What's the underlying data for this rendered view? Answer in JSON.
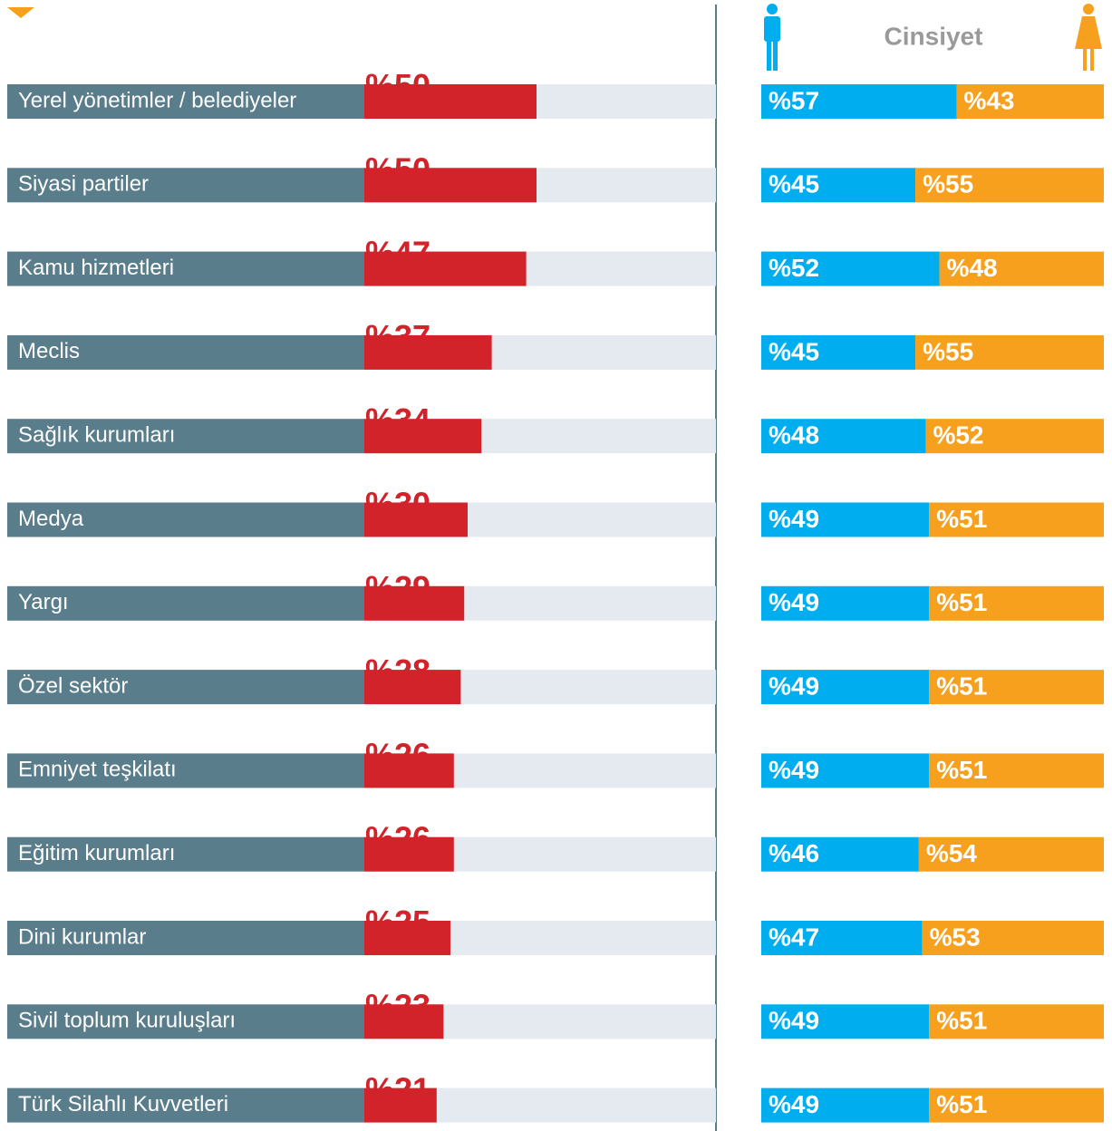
{
  "chart_data": {
    "type": "bar",
    "orientation": "horizontal",
    "categories": [
      "Yerel yönetimler / belediyeler",
      "Siyasi partiler",
      "Kamu hizmetleri",
      "Meclis",
      "Sağlık kurumları",
      "Medya",
      "Yargı",
      "Özel sektör",
      "Emniyet teşkilatı",
      "Eğitim kurumları",
      "Dini kurumlar",
      "Sivil toplum kuruluşları",
      "Türk Silahlı Kuvvetleri"
    ],
    "values": [
      50,
      50,
      47,
      37,
      34,
      30,
      29,
      28,
      26,
      26,
      25,
      23,
      21
    ],
    "value_labels": [
      "%50",
      "%50",
      "%47",
      "%37",
      "%34",
      "%30",
      "%29",
      "%28",
      "%26",
      "%26",
      "%25",
      "%23",
      "%21"
    ],
    "color": "#d2232a",
    "xlim": [
      0,
      100
    ],
    "gender": {
      "title": "Cinsiyet",
      "series": [
        {
          "color": "#00aeef",
          "values": [
            57,
            45,
            52,
            45,
            48,
            49,
            49,
            49,
            49,
            46,
            47,
            49,
            49
          ],
          "value_labels": [
            "%57",
            "%45",
            "%52",
            "%45",
            "%48",
            "%49",
            "%49",
            "%49",
            "%49",
            "%46",
            "%47",
            "%49",
            "%49"
          ]
        },
        {
          "color": "#f7a01d",
          "values": [
            43,
            55,
            48,
            55,
            52,
            51,
            51,
            51,
            51,
            54,
            53,
            51,
            51
          ],
          "value_labels": [
            "%43",
            "%55",
            "%48",
            "%55",
            "%52",
            "%51",
            "%51",
            "%51",
            "%51",
            "%54",
            "%53",
            "%51",
            "%51"
          ]
        }
      ]
    }
  }
}
